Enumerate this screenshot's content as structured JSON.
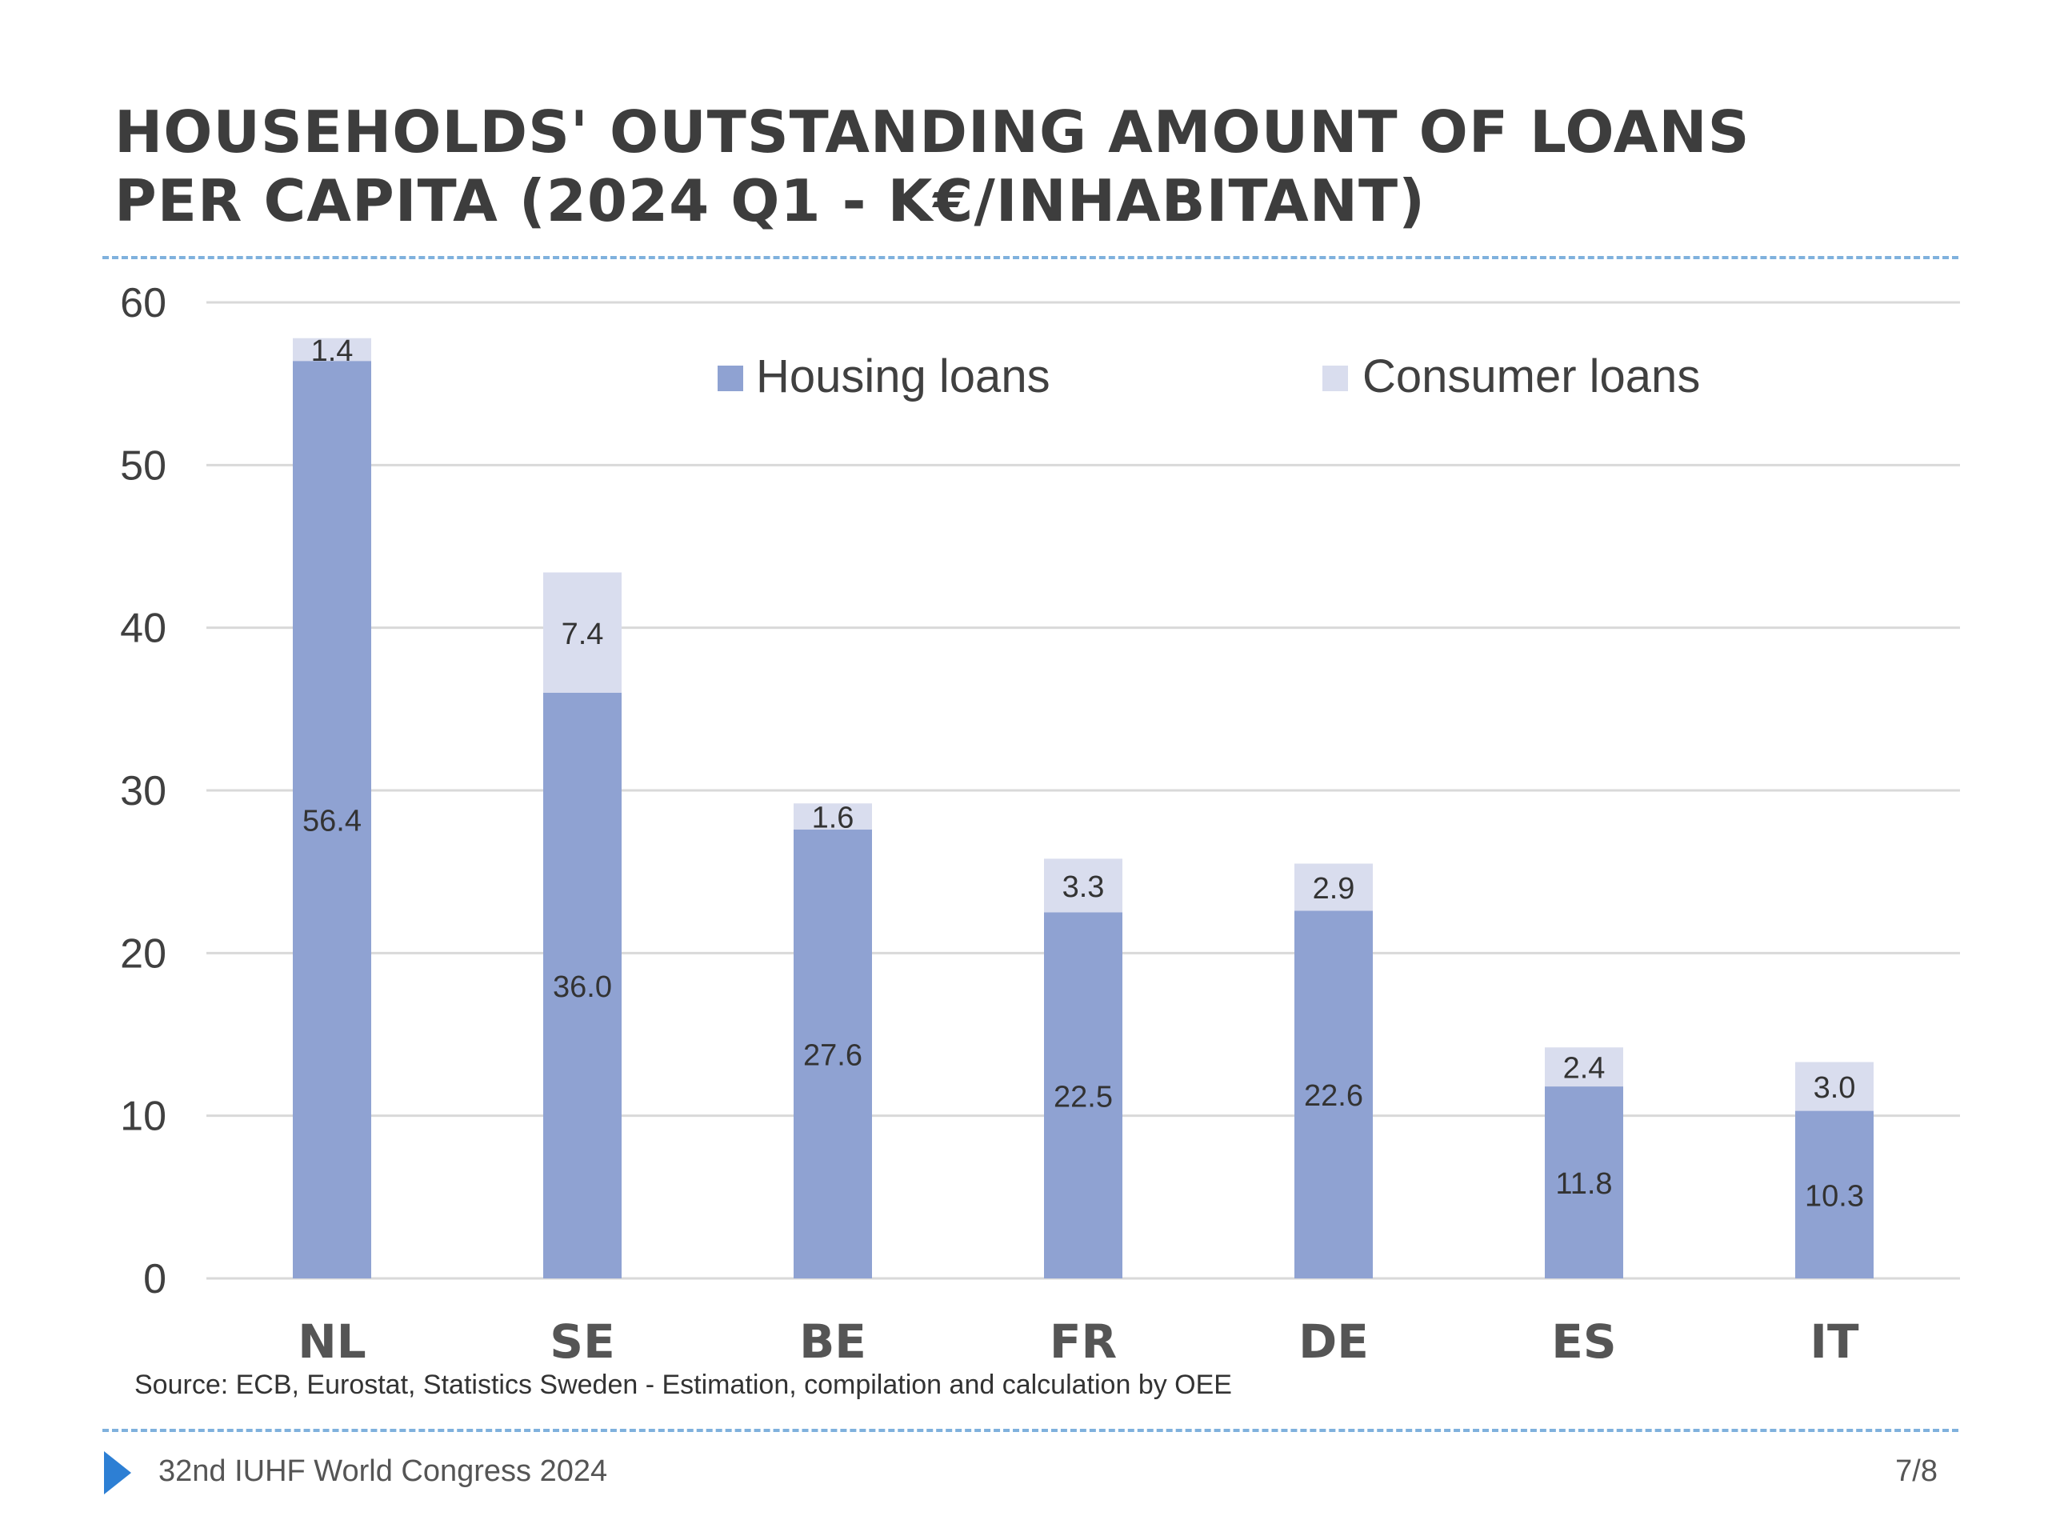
{
  "title_line1": "HOUSEHOLDS' OUTSTANDING AMOUNT OF LOANS",
  "title_line2": "PER CAPITA (2024 Q1 - K€/INHABITANT)",
  "source": "Source: ECB, Eurostat, Statistics Sweden - Estimation, compilation and calculation by OEE",
  "footer": {
    "text": "32nd IUHF World Congress 2024",
    "page": "7/8"
  },
  "colors": {
    "housing": "#8fa2d2",
    "consumer": "#d9ddee",
    "grid": "#d9d9d9",
    "rule": "#7fb1dd",
    "accent": "#2d7fd4"
  },
  "chart_data": {
    "type": "bar",
    "stacked": true,
    "categories": [
      "NL",
      "SE",
      "BE",
      "FR",
      "DE",
      "ES",
      "IT"
    ],
    "series": [
      {
        "name": "Housing loans",
        "values": [
          56.4,
          36.0,
          27.6,
          22.5,
          22.6,
          11.8,
          10.3
        ],
        "labels": [
          "56.4",
          "36.0",
          "27.6",
          "22.5",
          "22.6",
          "11.8",
          "10.3"
        ]
      },
      {
        "name": "Consumer loans",
        "values": [
          1.4,
          7.4,
          1.6,
          3.3,
          2.9,
          2.4,
          3.0
        ],
        "labels": [
          "1.4",
          "7.4",
          "1.6",
          "3.3",
          "2.9",
          "2.4",
          "3.0"
        ]
      }
    ],
    "ylim": [
      0,
      60
    ],
    "yticks": [
      0,
      10,
      20,
      30,
      40,
      50,
      60
    ],
    "grid": true,
    "legend": "top"
  }
}
